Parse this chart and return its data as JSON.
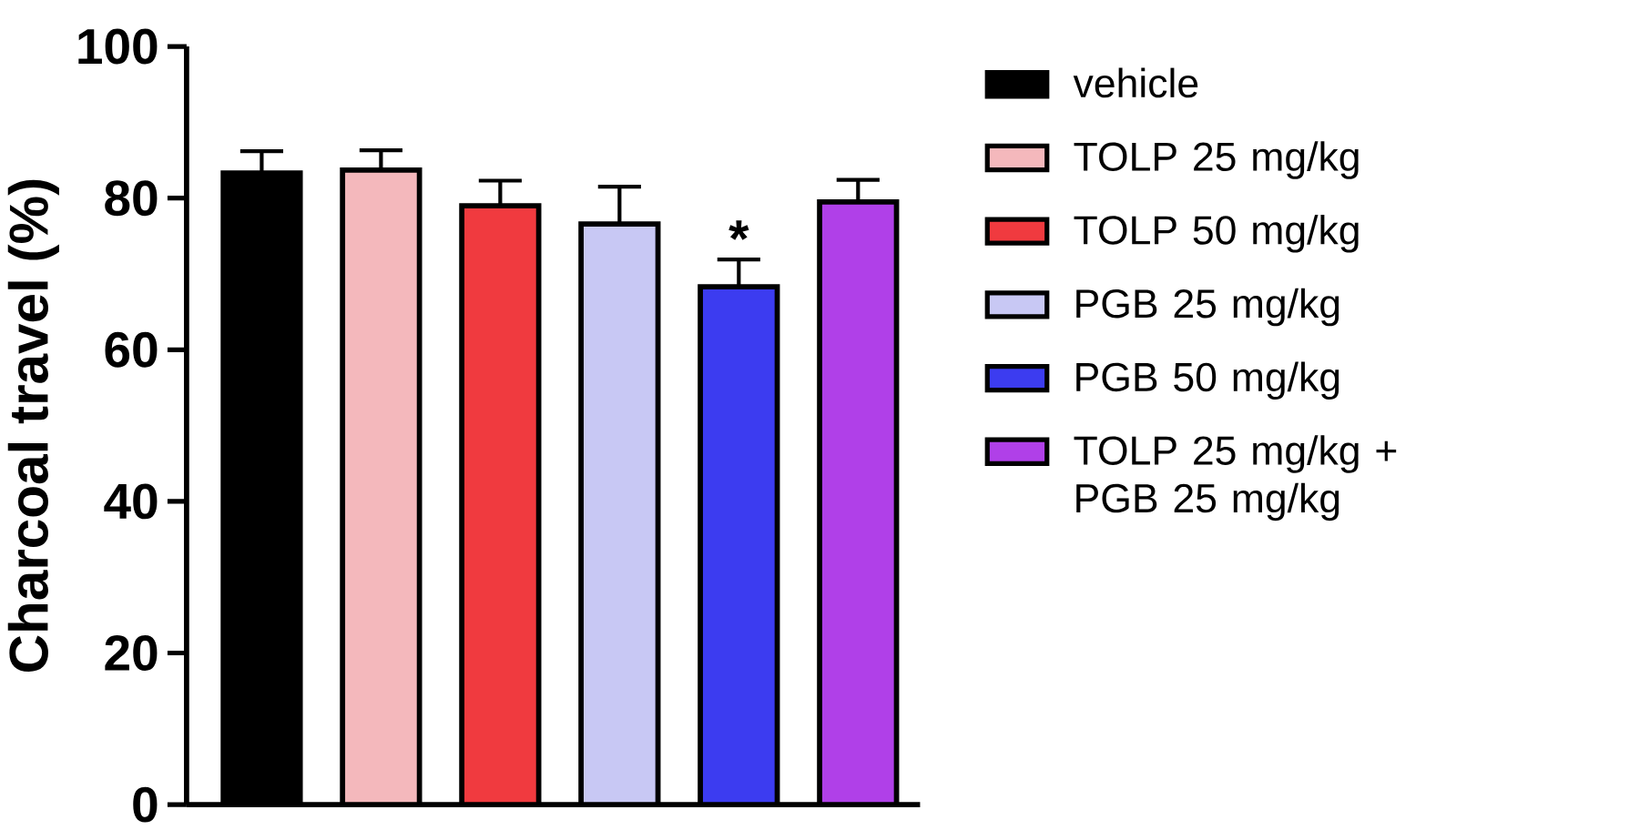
{
  "chart_data": {
    "type": "bar",
    "ylabel": "Charcoal travel (%)",
    "categories": [
      null,
      null,
      null,
      null,
      null,
      null
    ],
    "series": [
      {
        "name": "vehicle",
        "color": "#000000",
        "values": [
          83.3,
          null,
          null,
          null,
          null,
          null
        ],
        "errors": [
          [
            83.3,
            86.2
          ],
          null,
          null,
          null,
          null,
          null
        ]
      },
      {
        "name": "TOLP 25 mg/kg",
        "color": "#f4b8bc",
        "values": [
          null,
          83.7,
          null,
          null,
          null,
          null
        ],
        "errors": [
          null,
          [
            83.7,
            86.3
          ],
          null,
          null,
          null,
          null
        ]
      },
      {
        "name": "TOLP 50 mg/kg",
        "color": "#f03a3f",
        "values": [
          null,
          null,
          79.0,
          null,
          null,
          null
        ],
        "errors": [
          null,
          null,
          [
            79.0,
            82.3
          ],
          null,
          null,
          null
        ]
      },
      {
        "name": "PGB 25 mg/kg",
        "color": "#c8c8f4",
        "values": [
          null,
          null,
          null,
          76.6,
          null,
          null
        ],
        "errors": [
          null,
          null,
          null,
          [
            76.6,
            81.5
          ],
          null,
          null
        ]
      },
      {
        "name": "PGB 50 mg/kg",
        "color": "#3c3cf0",
        "values": [
          null,
          null,
          null,
          null,
          68.3,
          null
        ],
        "errors": [
          null,
          null,
          null,
          null,
          [
            68.3,
            71.9
          ],
          null
        ]
      },
      {
        "name": "TOLP 25 mg/kg + PGB 25 mg/kg",
        "color": "#b040e8",
        "values": [
          null,
          null,
          null,
          null,
          null,
          79.5
        ],
        "errors": [
          null,
          null,
          null,
          null,
          null,
          [
            79.5,
            82.4
          ]
        ]
      }
    ],
    "ylim": [
      0,
      100
    ],
    "yticks": [
      0,
      20,
      40,
      60,
      80,
      100
    ],
    "tick_labels": "y",
    "grid": false,
    "legend": "right",
    "annotations": [
      {
        "text": "*",
        "y": 71.9
      }
    ]
  }
}
